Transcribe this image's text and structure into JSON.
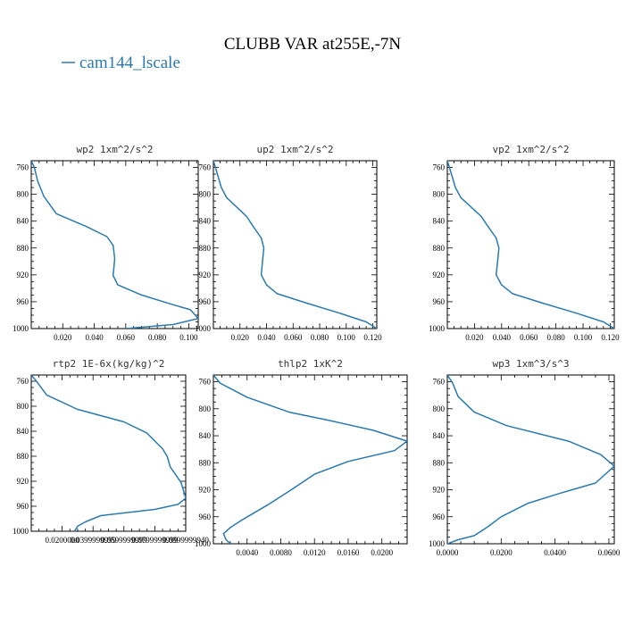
{
  "figure": {
    "title": "CLUBB VAR at255E,-7N",
    "legend": [
      {
        "name": "cam144_lscale",
        "color": "#2a7ab0"
      }
    ]
  },
  "chart_data": [
    {
      "type": "line",
      "title": "wp2   1xm^2/s^2",
      "series_name": "cam144_lscale",
      "ylim": [
        1000,
        750
      ],
      "y_ticks": [
        760,
        800,
        840,
        880,
        920,
        960,
        1000
      ],
      "xlim": [
        0.0,
        0.106
      ],
      "x_ticks": [
        0.02,
        0.04,
        0.06,
        0.08,
        0.1
      ],
      "x_tick_labels": [
        "0.020",
        "0.040",
        "0.060",
        "0.080",
        "0.100"
      ],
      "points": [
        [
          0.0,
          750
        ],
        [
          0.002,
          760
        ],
        [
          0.004,
          780
        ],
        [
          0.008,
          803
        ],
        [
          0.016,
          829
        ],
        [
          0.035,
          848
        ],
        [
          0.048,
          863
        ],
        [
          0.052,
          876
        ],
        [
          0.053,
          896
        ],
        [
          0.052,
          921
        ],
        [
          0.055,
          935
        ],
        [
          0.07,
          950
        ],
        [
          0.088,
          963
        ],
        [
          0.101,
          972
        ],
        [
          0.106,
          985
        ],
        [
          0.09,
          994
        ],
        [
          0.06,
          1000
        ]
      ]
    },
    {
      "type": "line",
      "title": "up2   1xm^2/s^2",
      "series_name": "cam144_lscale",
      "ylim": [
        1000,
        750
      ],
      "y_ticks": [
        760,
        800,
        840,
        880,
        920,
        960,
        1000
      ],
      "xlim": [
        0.0,
        0.123
      ],
      "x_ticks": [
        0.02,
        0.04,
        0.06,
        0.08,
        0.1,
        0.12
      ],
      "x_tick_labels": [
        "0.020",
        "0.040",
        "0.060",
        "0.080",
        "0.100",
        "0.120"
      ],
      "points": [
        [
          0.0,
          750
        ],
        [
          0.003,
          770
        ],
        [
          0.006,
          790
        ],
        [
          0.01,
          805
        ],
        [
          0.018,
          820
        ],
        [
          0.025,
          833
        ],
        [
          0.03,
          848
        ],
        [
          0.036,
          865
        ],
        [
          0.038,
          880
        ],
        [
          0.037,
          900
        ],
        [
          0.036,
          920
        ],
        [
          0.04,
          935
        ],
        [
          0.048,
          948
        ],
        [
          0.07,
          962
        ],
        [
          0.095,
          977
        ],
        [
          0.115,
          990
        ],
        [
          0.123,
          1000
        ]
      ]
    },
    {
      "type": "line",
      "title": "vp2   1xm^2/s^2",
      "series_name": "cam144_lscale",
      "ylim": [
        1000,
        750
      ],
      "y_ticks": [
        760,
        800,
        840,
        880,
        920,
        960,
        1000
      ],
      "xlim": [
        0.0,
        0.123
      ],
      "x_ticks": [
        0.02,
        0.04,
        0.06,
        0.08,
        0.1,
        0.12
      ],
      "x_tick_labels": [
        "0.020",
        "0.040",
        "0.060",
        "0.080",
        "0.100",
        "0.120"
      ],
      "points": [
        [
          0.0,
          750
        ],
        [
          0.003,
          770
        ],
        [
          0.006,
          790
        ],
        [
          0.01,
          805
        ],
        [
          0.018,
          820
        ],
        [
          0.025,
          833
        ],
        [
          0.03,
          848
        ],
        [
          0.036,
          865
        ],
        [
          0.038,
          880
        ],
        [
          0.037,
          900
        ],
        [
          0.036,
          920
        ],
        [
          0.04,
          935
        ],
        [
          0.048,
          948
        ],
        [
          0.07,
          962
        ],
        [
          0.095,
          977
        ],
        [
          0.115,
          990
        ],
        [
          0.123,
          1000
        ]
      ]
    },
    {
      "type": "line",
      "title": "rtp2   1E-6x(kg/kg)^2",
      "series_name": "cam144_lscale",
      "ylim": [
        1000,
        750
      ],
      "y_ticks": [
        760,
        800,
        840,
        880,
        920,
        960,
        1000
      ],
      "xlim": [
        0.0,
        0.1
      ],
      "x_ticks": [
        0.02,
        0.04,
        0.06,
        0.08,
        0.1
      ],
      "x_tick_labels": [
        "0.0200000",
        "0.0399999999",
        "0.0599999999",
        "0.0799999999",
        "0.0999999940"
      ],
      "points": [
        [
          0.0,
          750
        ],
        [
          0.004,
          762
        ],
        [
          0.01,
          782
        ],
        [
          0.03,
          805
        ],
        [
          0.06,
          825
        ],
        [
          0.075,
          843
        ],
        [
          0.085,
          868
        ],
        [
          0.088,
          880
        ],
        [
          0.09,
          897
        ],
        [
          0.097,
          922
        ],
        [
          0.1,
          947
        ],
        [
          0.095,
          957
        ],
        [
          0.08,
          965
        ],
        [
          0.045,
          975
        ],
        [
          0.035,
          985
        ],
        [
          0.03,
          992
        ],
        [
          0.028,
          1000
        ]
      ]
    },
    {
      "type": "line",
      "title": "thlp2   1xK^2",
      "series_name": "cam144_lscale",
      "ylim": [
        1000,
        750
      ],
      "y_ticks": [
        760,
        800,
        840,
        880,
        920,
        960,
        1000
      ],
      "xlim": [
        0.0,
        0.023
      ],
      "x_ticks": [
        0.004,
        0.008,
        0.012,
        0.016,
        0.02
      ],
      "x_tick_labels": [
        "0.0040",
        "0.0080",
        "0.0120",
        "0.0160",
        "0.0200"
      ],
      "points": [
        [
          0.0,
          750
        ],
        [
          0.0008,
          762
        ],
        [
          0.004,
          783
        ],
        [
          0.009,
          805
        ],
        [
          0.014,
          818
        ],
        [
          0.019,
          832
        ],
        [
          0.023,
          848
        ],
        [
          0.0215,
          862
        ],
        [
          0.016,
          878
        ],
        [
          0.012,
          897
        ],
        [
          0.0095,
          918
        ],
        [
          0.0065,
          942
        ],
        [
          0.0035,
          964
        ],
        [
          0.002,
          976
        ],
        [
          0.0012,
          985
        ],
        [
          0.0015,
          994
        ],
        [
          0.002,
          1000
        ]
      ]
    },
    {
      "type": "line",
      "title": "wp3   1xm^3/s^3",
      "series_name": "cam144_lscale",
      "ylim": [
        1000,
        750
      ],
      "y_ticks": [
        760,
        800,
        840,
        880,
        920,
        960,
        1000
      ],
      "xlim": [
        0.0,
        0.062
      ],
      "x_ticks": [
        0.0,
        0.02,
        0.04,
        0.06
      ],
      "x_tick_labels": [
        "0.0000",
        "0.0200",
        "0.0400",
        "0.0600"
      ],
      "points": [
        [
          0.0,
          750
        ],
        [
          0.002,
          762
        ],
        [
          0.004,
          782
        ],
        [
          0.01,
          805
        ],
        [
          0.022,
          825
        ],
        [
          0.045,
          848
        ],
        [
          0.057,
          868
        ],
        [
          0.062,
          885
        ],
        [
          0.055,
          910
        ],
        [
          0.042,
          925
        ],
        [
          0.03,
          940
        ],
        [
          0.02,
          960
        ],
        [
          0.015,
          975
        ],
        [
          0.01,
          988
        ],
        [
          0.004,
          994
        ],
        [
          0.0,
          1000
        ]
      ]
    }
  ]
}
